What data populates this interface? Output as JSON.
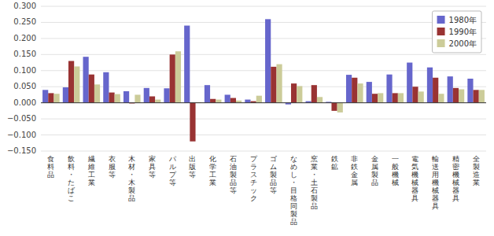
{
  "chart_data": {
    "type": "bar",
    "categories": [
      "食料品",
      "飲料・たばこ",
      "繊維工業",
      "衣服等",
      "木材・木製品",
      "家具等",
      "パルプ等",
      "出版等",
      "化学工業",
      "石油製品等",
      "プラスチック",
      "ゴム製品等",
      "なめし・目格同製品",
      "窯業・土石製品",
      "鉄鉱",
      "非鉄金属",
      "金属製品",
      "一般機械",
      "電気機械器具",
      "輸送用機械器具",
      "精密機械器具",
      "全製造業"
    ],
    "series": [
      {
        "name": "1980年",
        "color": "#6666CC",
        "values": [
          0.04,
          0.048,
          0.143,
          0.095,
          0.036,
          0.046,
          0.045,
          0.24,
          0.055,
          0.025,
          0.01,
          0.26,
          -0.005,
          0.005,
          0.003,
          0.087,
          0.065,
          0.088,
          0.125,
          0.11,
          0.082,
          0.075
        ]
      },
      {
        "name": "1990年",
        "color": "#993333",
        "values": [
          0.03,
          0.13,
          0.088,
          0.032,
          -0.002,
          0.02,
          0.15,
          -0.12,
          0.012,
          0.015,
          0.005,
          0.112,
          0.06,
          0.055,
          -0.025,
          0.078,
          0.028,
          0.03,
          0.05,
          0.078,
          0.046,
          0.04
        ]
      },
      {
        "name": "2000年",
        "color": "#CCCC99",
        "values": [
          0.028,
          0.113,
          0.057,
          0.027,
          0.025,
          0.01,
          0.16,
          0.002,
          0.01,
          0.007,
          0.022,
          0.12,
          0.052,
          0.018,
          -0.03,
          0.06,
          0.03,
          0.03,
          0.035,
          0.028,
          0.042,
          0.04
        ]
      }
    ],
    "ylim": [
      -0.15,
      0.3
    ],
    "yticks": [
      {
        "value": -0.15,
        "label": "−0.150"
      },
      {
        "value": -0.1,
        "label": "−0.100"
      },
      {
        "value": -0.05,
        "label": "−0.050"
      },
      {
        "value": 0.0,
        "label": "0.000"
      },
      {
        "value": 0.05,
        "label": "0.050"
      },
      {
        "value": 0.1,
        "label": "0.100"
      },
      {
        "value": 0.15,
        "label": "0.150"
      },
      {
        "value": 0.2,
        "label": "0.200"
      },
      {
        "value": 0.25,
        "label": "0.250"
      },
      {
        "value": 0.3,
        "label": "0.300"
      }
    ],
    "grid": true,
    "legend": "upper right"
  }
}
